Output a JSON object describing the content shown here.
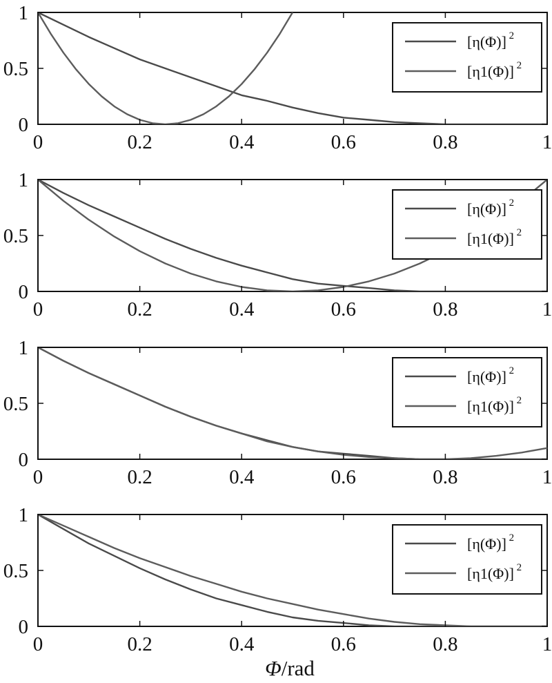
{
  "x_axis_label": {
    "symbol": "Φ",
    "unit": "/rad"
  },
  "chart_data": [
    {
      "type": "line",
      "xlim": [
        0,
        1
      ],
      "ylim": [
        0,
        1
      ],
      "xticks": [
        "0",
        "0.2",
        "0.4",
        "0.6",
        "0.8",
        "1"
      ],
      "yticks": [
        "0",
        "0.5",
        "1"
      ],
      "legend_position": "top-right",
      "series": [
        {
          "name_base": "[η(Φ)]",
          "name_exp": "2",
          "x": [
            0,
            0.05,
            0.1,
            0.15,
            0.2,
            0.25,
            0.3,
            0.35,
            0.4,
            0.45,
            0.5,
            0.55,
            0.6,
            0.65,
            0.7,
            0.75,
            0.8,
            0.85,
            0.9,
            0.95,
            1.0
          ],
          "y": [
            1.0,
            0.89,
            0.78,
            0.68,
            0.58,
            0.5,
            0.42,
            0.34,
            0.26,
            0.21,
            0.15,
            0.1,
            0.06,
            0.04,
            0.02,
            0.01,
            0.0,
            0.0,
            0.0,
            0.0,
            0.0
          ]
        },
        {
          "name_base": "[η1(Φ)]",
          "name_exp": "2",
          "x": [
            0,
            0.025,
            0.05,
            0.075,
            0.1,
            0.125,
            0.15,
            0.175,
            0.2,
            0.225,
            0.25,
            0.275,
            0.3,
            0.325,
            0.35,
            0.375,
            0.4,
            0.425,
            0.45,
            0.475,
            0.5
          ],
          "y": [
            1.0,
            0.81,
            0.64,
            0.49,
            0.36,
            0.25,
            0.16,
            0.09,
            0.04,
            0.01,
            0.0,
            0.01,
            0.04,
            0.09,
            0.16,
            0.25,
            0.36,
            0.49,
            0.64,
            0.81,
            1.0
          ]
        }
      ]
    },
    {
      "type": "line",
      "xlim": [
        0,
        1
      ],
      "ylim": [
        0,
        1
      ],
      "xticks": [
        "0",
        "0.2",
        "0.4",
        "0.6",
        "0.8",
        "1"
      ],
      "yticks": [
        "0",
        "0.5",
        "1"
      ],
      "legend_position": "top-right",
      "series": [
        {
          "name_base": "[η(Φ)]",
          "name_exp": "2",
          "x": [
            0,
            0.05,
            0.1,
            0.15,
            0.2,
            0.25,
            0.3,
            0.35,
            0.4,
            0.45,
            0.5,
            0.55,
            0.6,
            0.65,
            0.7,
            0.75,
            0.8,
            0.85,
            0.9,
            0.95,
            1.0
          ],
          "y": [
            1.0,
            0.88,
            0.77,
            0.67,
            0.57,
            0.47,
            0.38,
            0.3,
            0.23,
            0.17,
            0.11,
            0.07,
            0.05,
            0.03,
            0.01,
            0.0,
            0.0,
            0.0,
            0.0,
            0.0,
            0.0
          ]
        },
        {
          "name_base": "[η1(Φ)]",
          "name_exp": "2",
          "x": [
            0,
            0.05,
            0.1,
            0.15,
            0.2,
            0.25,
            0.3,
            0.35,
            0.4,
            0.45,
            0.5,
            0.55,
            0.6,
            0.65,
            0.7,
            0.75,
            0.8,
            0.85,
            0.9,
            0.95,
            1.0
          ],
          "y": [
            1.0,
            0.81,
            0.64,
            0.49,
            0.36,
            0.25,
            0.16,
            0.09,
            0.04,
            0.01,
            0.0,
            0.01,
            0.04,
            0.09,
            0.16,
            0.25,
            0.36,
            0.49,
            0.64,
            0.81,
            1.0
          ]
        }
      ]
    },
    {
      "type": "line",
      "xlim": [
        0,
        1
      ],
      "ylim": [
        0,
        1
      ],
      "xticks": [
        "0",
        "0.2",
        "0.4",
        "0.6",
        "0.8",
        "1"
      ],
      "yticks": [
        "0",
        "0.5",
        "1"
      ],
      "legend_position": "top-right",
      "series": [
        {
          "name_base": "[η(Φ)]",
          "name_exp": "2",
          "x": [
            0,
            0.05,
            0.1,
            0.15,
            0.2,
            0.25,
            0.3,
            0.35,
            0.4,
            0.45,
            0.5,
            0.55,
            0.6,
            0.65,
            0.7,
            0.75,
            0.8,
            0.85,
            0.9,
            0.95,
            1.0
          ],
          "y": [
            1.0,
            0.88,
            0.77,
            0.67,
            0.57,
            0.47,
            0.38,
            0.3,
            0.23,
            0.17,
            0.11,
            0.07,
            0.05,
            0.03,
            0.01,
            0.0,
            0.0,
            0.0,
            0.0,
            0.0,
            0.0
          ]
        },
        {
          "name_base": "[η1(Φ)]",
          "name_exp": "2",
          "x": [
            0,
            0.05,
            0.1,
            0.15,
            0.2,
            0.25,
            0.3,
            0.35,
            0.4,
            0.45,
            0.5,
            0.55,
            0.6,
            0.65,
            0.7,
            0.75,
            0.8,
            0.85,
            0.9,
            0.95,
            1.0
          ],
          "y": [
            1.0,
            0.88,
            0.77,
            0.67,
            0.57,
            0.47,
            0.38,
            0.3,
            0.23,
            0.16,
            0.11,
            0.07,
            0.04,
            0.02,
            0.01,
            0.0,
            0.0,
            0.01,
            0.03,
            0.06,
            0.1
          ]
        }
      ]
    },
    {
      "type": "line",
      "xlim": [
        0,
        1
      ],
      "ylim": [
        0,
        1
      ],
      "xticks": [
        "0",
        "0.2",
        "0.4",
        "0.6",
        "0.8",
        "1"
      ],
      "yticks": [
        "0",
        "0.5",
        "1"
      ],
      "legend_position": "top-right",
      "series": [
        {
          "name_base": "[η(Φ)]",
          "name_exp": "2",
          "x": [
            0,
            0.05,
            0.1,
            0.15,
            0.2,
            0.25,
            0.3,
            0.35,
            0.4,
            0.45,
            0.5,
            0.55,
            0.6,
            0.65,
            0.7,
            0.75,
            0.8,
            0.85,
            0.9,
            0.95,
            1.0
          ],
          "y": [
            1.0,
            0.87,
            0.74,
            0.63,
            0.52,
            0.42,
            0.33,
            0.25,
            0.19,
            0.13,
            0.08,
            0.05,
            0.03,
            0.01,
            0.0,
            0.0,
            0.0,
            0.0,
            0.0,
            0.0,
            0.0
          ]
        },
        {
          "name_base": "[η1(Φ)]",
          "name_exp": "2",
          "x": [
            0,
            0.05,
            0.1,
            0.15,
            0.2,
            0.25,
            0.3,
            0.35,
            0.4,
            0.45,
            0.5,
            0.55,
            0.6,
            0.65,
            0.7,
            0.75,
            0.8,
            0.85,
            0.9,
            0.95,
            1.0
          ],
          "y": [
            1.0,
            0.9,
            0.8,
            0.7,
            0.61,
            0.53,
            0.45,
            0.38,
            0.31,
            0.25,
            0.2,
            0.15,
            0.11,
            0.07,
            0.04,
            0.02,
            0.01,
            0.0,
            0.0,
            0.0,
            0.0
          ]
        }
      ]
    }
  ]
}
